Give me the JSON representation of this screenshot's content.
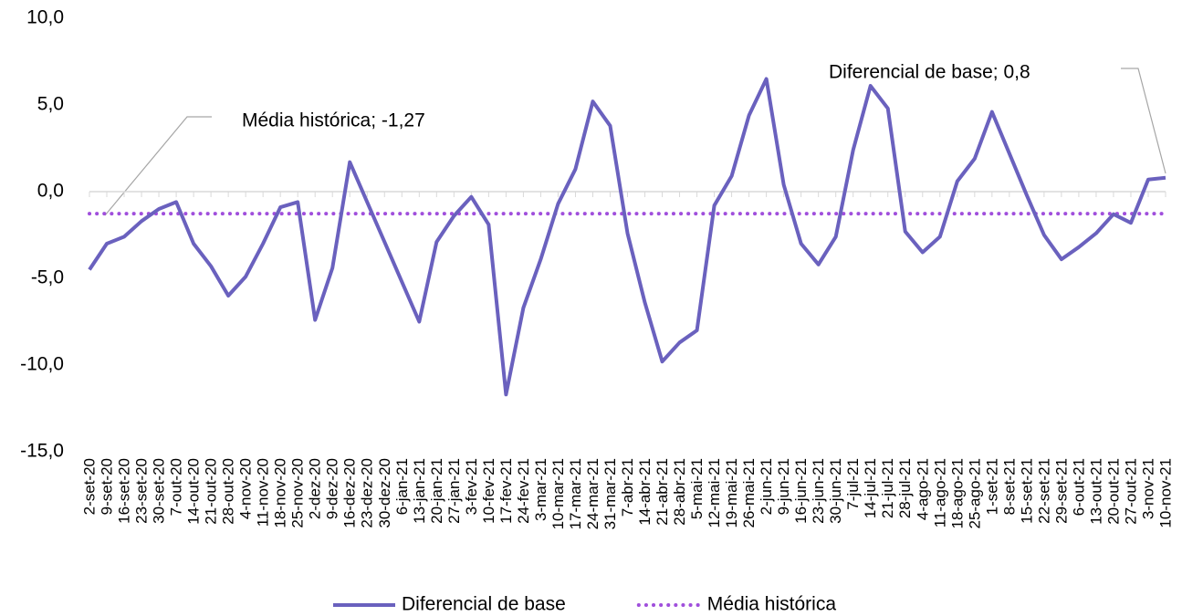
{
  "chart_data": {
    "type": "line",
    "categories": [
      "2-set-20",
      "9-set-20",
      "16-set-20",
      "23-set-20",
      "30-set-20",
      "7-out-20",
      "14-out-20",
      "21-out-20",
      "28-out-20",
      "4-nov-20",
      "11-nov-20",
      "18-nov-20",
      "25-nov-20",
      "2-dez-20",
      "9-dez-20",
      "16-dez-20",
      "23-dez-20",
      "30-dez-20",
      "6-jan-21",
      "13-jan-21",
      "20-jan-21",
      "27-jan-21",
      "3-fev-21",
      "10-fev-21",
      "17-fev-21",
      "24-fev-21",
      "3-mar-21",
      "10-mar-21",
      "17-mar-21",
      "24-mar-21",
      "31-mar-21",
      "7-abr-21",
      "14-abr-21",
      "21-abr-21",
      "28-abr-21",
      "5-mai-21",
      "12-mai-21",
      "19-mai-21",
      "26-mai-21",
      "2-jun-21",
      "9-jun-21",
      "16-jun-21",
      "23-jun-21",
      "30-jun-21",
      "7-jul-21",
      "14-jul-21",
      "21-jul-21",
      "28-jul-21",
      "4-ago-21",
      "11-ago-21",
      "18-ago-21",
      "25-ago-21",
      "1-set-21",
      "8-set-21",
      "15-set-21",
      "22-set-21",
      "29-set-21",
      "6-out-21",
      "13-out-21",
      "20-out-21",
      "27-out-21",
      "3-nov-21",
      "10-nov-21"
    ],
    "series": [
      {
        "name": "Diferencial de base",
        "color": "#6a61be",
        "style": "solid",
        "values": [
          -4.5,
          -3.0,
          -2.6,
          -1.7,
          -1.0,
          -0.6,
          -3.0,
          -4.3,
          -6.0,
          -4.9,
          -3.0,
          -0.9,
          -0.6,
          -7.4,
          -4.4,
          1.7,
          -0.6,
          -2.9,
          -5.2,
          -7.5,
          -2.9,
          -1.4,
          -0.3,
          -1.9,
          -11.7,
          -6.7,
          -3.9,
          -0.7,
          1.3,
          5.2,
          3.8,
          -2.4,
          -6.4,
          -9.8,
          -8.7,
          -8.0,
          -0.8,
          0.9,
          4.4,
          6.5,
          0.4,
          -3.0,
          -4.2,
          -2.6,
          2.4,
          6.1,
          4.8,
          -2.3,
          -3.5,
          -2.6,
          0.6,
          1.9,
          4.6,
          2.2,
          -0.2,
          -2.5,
          -3.9,
          -3.2,
          -2.4,
          -1.3,
          -1.8,
          0.7,
          0.8
        ]
      },
      {
        "name": "Média histórica",
        "color": "#a04fdc",
        "style": "dotted",
        "values": [
          -1.27,
          -1.27,
          -1.27,
          -1.27,
          -1.27,
          -1.27,
          -1.27,
          -1.27,
          -1.27,
          -1.27,
          -1.27,
          -1.27,
          -1.27,
          -1.27,
          -1.27,
          -1.27,
          -1.27,
          -1.27,
          -1.27,
          -1.27,
          -1.27,
          -1.27,
          -1.27,
          -1.27,
          -1.27,
          -1.27,
          -1.27,
          -1.27,
          -1.27,
          -1.27,
          -1.27,
          -1.27,
          -1.27,
          -1.27,
          -1.27,
          -1.27,
          -1.27,
          -1.27,
          -1.27,
          -1.27,
          -1.27,
          -1.27,
          -1.27,
          -1.27,
          -1.27,
          -1.27,
          -1.27,
          -1.27,
          -1.27,
          -1.27,
          -1.27,
          -1.27,
          -1.27,
          -1.27,
          -1.27,
          -1.27,
          -1.27,
          -1.27,
          -1.27,
          -1.27,
          -1.27,
          -1.27,
          -1.27
        ]
      }
    ],
    "ylim": [
      -15,
      10
    ],
    "yticks": [
      {
        "value": -15,
        "label": "-15,0"
      },
      {
        "value": -10,
        "label": "-10,0"
      },
      {
        "value": -5,
        "label": "-5,0"
      },
      {
        "value": 0,
        "label": "0,0"
      },
      {
        "value": 5,
        "label": "5,0"
      },
      {
        "value": 10,
        "label": "10,0"
      }
    ],
    "annotations": [
      "Média histórica; -1,27",
      "Diferencial de base; 0,8"
    ],
    "legend": "bottom"
  }
}
